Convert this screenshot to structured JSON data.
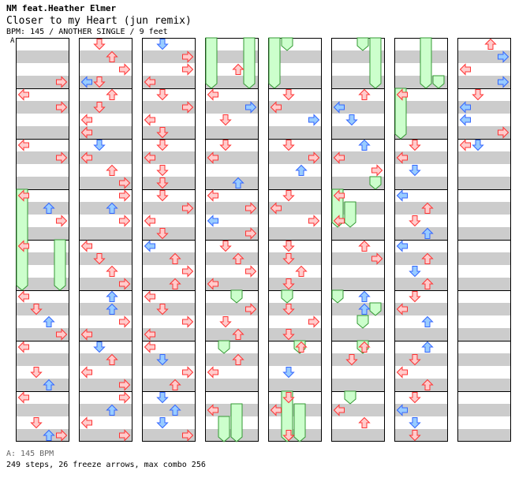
{
  "song": {
    "artist": "NM feat.Heather Elmer",
    "title": "Closer to my Heart (jun remix)",
    "info": "BPM: 145 / ANOTHER SINGLE / 9 feet"
  },
  "section_marker": "A",
  "bpm_legend": "A: 145 BPM",
  "stats": "249 steps, 26 freeze arrows, max combo 256",
  "colors": {
    "background": "#ffffff",
    "stripe": "#cccccc",
    "column_border": "#000000",
    "quarter_arrow_fill": "#ffcccc",
    "quarter_arrow_stroke": "#ff3333",
    "eighth_arrow_fill": "#99ccff",
    "eighth_arrow_stroke": "#3366ff",
    "freeze_fill": "#ccffcc",
    "freeze_stroke": "#339933"
  },
  "chart_data": {
    "type": "step-chart",
    "lanes": [
      "left",
      "down",
      "up",
      "right"
    ],
    "columns": 8,
    "measures_per_column": 8,
    "beats_per_measure": 4,
    "notes": [
      [
        [
          0,
          3,
          3,
          "q"
        ],
        [
          1,
          0,
          0,
          "q"
        ],
        [
          1,
          1,
          3,
          "q"
        ],
        [
          2,
          0,
          0,
          "q"
        ],
        [
          2,
          1,
          3,
          "q"
        ],
        [
          3,
          0,
          0,
          "q"
        ],
        [
          3,
          1,
          2,
          "e"
        ],
        [
          3,
          2,
          3,
          "q"
        ],
        [
          4,
          0,
          0,
          "q"
        ],
        [
          5,
          0,
          0,
          "q"
        ],
        [
          5,
          1,
          1,
          "q"
        ],
        [
          5,
          2,
          2,
          "e"
        ],
        [
          5,
          3,
          3,
          "q"
        ],
        [
          6,
          0,
          0,
          "q"
        ],
        [
          6,
          2,
          1,
          "q"
        ],
        [
          6,
          3,
          2,
          "e"
        ],
        [
          7,
          0,
          0,
          "q"
        ],
        [
          7,
          2,
          1,
          "q"
        ],
        [
          7,
          3,
          2,
          "e"
        ],
        [
          7,
          3,
          3,
          "q"
        ]
      ],
      [
        [
          0,
          0,
          1,
          "q"
        ],
        [
          0,
          1,
          2,
          "q"
        ],
        [
          0,
          2,
          3,
          "q"
        ],
        [
          0,
          3,
          1,
          "q"
        ],
        [
          0,
          3,
          0,
          "e"
        ],
        [
          1,
          0,
          2,
          "q"
        ],
        [
          1,
          1,
          1,
          "q"
        ],
        [
          1,
          2,
          0,
          "q"
        ],
        [
          1,
          3,
          0,
          "q"
        ],
        [
          2,
          0,
          1,
          "e"
        ],
        [
          2,
          1,
          0,
          "q"
        ],
        [
          2,
          2,
          2,
          "q"
        ],
        [
          2,
          3,
          3,
          "q"
        ],
        [
          3,
          0,
          3,
          "q"
        ],
        [
          3,
          1,
          2,
          "e"
        ],
        [
          3,
          2,
          3,
          "q"
        ],
        [
          4,
          0,
          0,
          "q"
        ],
        [
          4,
          1,
          1,
          "q"
        ],
        [
          4,
          2,
          2,
          "q"
        ],
        [
          4,
          3,
          3,
          "q"
        ],
        [
          5,
          0,
          2,
          "e"
        ],
        [
          5,
          1,
          2,
          "e"
        ],
        [
          5,
          2,
          3,
          "q"
        ],
        [
          5,
          3,
          0,
          "q"
        ],
        [
          6,
          0,
          1,
          "e"
        ],
        [
          6,
          1,
          2,
          "q"
        ],
        [
          6,
          2,
          0,
          "q"
        ],
        [
          6,
          3,
          3,
          "q"
        ],
        [
          7,
          0,
          3,
          "q"
        ],
        [
          7,
          1,
          2,
          "e"
        ],
        [
          7,
          2,
          0,
          "q"
        ],
        [
          7,
          3,
          3,
          "q"
        ]
      ],
      [
        [
          0,
          0,
          1,
          "e"
        ],
        [
          0,
          1,
          3,
          "q"
        ],
        [
          0,
          2,
          3,
          "q"
        ],
        [
          0,
          3,
          0,
          "q"
        ],
        [
          1,
          0,
          1,
          "q"
        ],
        [
          1,
          1,
          3,
          "q"
        ],
        [
          1,
          2,
          0,
          "q"
        ],
        [
          1,
          3,
          1,
          "q"
        ],
        [
          2,
          0,
          1,
          "q"
        ],
        [
          2,
          1,
          0,
          "q"
        ],
        [
          2,
          2,
          1,
          "q"
        ],
        [
          2,
          3,
          1,
          "q"
        ],
        [
          3,
          0,
          1,
          "q"
        ],
        [
          3,
          1,
          3,
          "q"
        ],
        [
          3,
          2,
          0,
          "q"
        ],
        [
          3,
          3,
          1,
          "q"
        ],
        [
          4,
          0,
          0,
          "e"
        ],
        [
          4,
          1,
          2,
          "q"
        ],
        [
          4,
          2,
          3,
          "q"
        ],
        [
          4,
          3,
          2,
          "q"
        ],
        [
          5,
          0,
          0,
          "q"
        ],
        [
          5,
          1,
          1,
          "q"
        ],
        [
          5,
          2,
          3,
          "q"
        ],
        [
          5,
          3,
          0,
          "q"
        ],
        [
          6,
          0,
          0,
          "q"
        ],
        [
          6,
          1,
          1,
          "e"
        ],
        [
          6,
          2,
          3,
          "q"
        ],
        [
          6,
          3,
          2,
          "q"
        ],
        [
          7,
          0,
          1,
          "e"
        ],
        [
          7,
          1,
          2,
          "e"
        ],
        [
          7,
          2,
          1,
          "e"
        ],
        [
          7,
          3,
          3,
          "q"
        ]
      ],
      [
        [
          0,
          2,
          2,
          "q"
        ],
        [
          1,
          0,
          0,
          "q"
        ],
        [
          1,
          1,
          3,
          "e"
        ],
        [
          1,
          2,
          1,
          "q"
        ],
        [
          2,
          0,
          1,
          "q"
        ],
        [
          2,
          1,
          0,
          "q"
        ],
        [
          2,
          3,
          2,
          "e"
        ],
        [
          3,
          0,
          0,
          "q"
        ],
        [
          3,
          1,
          3,
          "q"
        ],
        [
          3,
          2,
          0,
          "e"
        ],
        [
          3,
          3,
          3,
          "q"
        ],
        [
          4,
          0,
          1,
          "q"
        ],
        [
          4,
          1,
          2,
          "q"
        ],
        [
          4,
          2,
          3,
          "q"
        ],
        [
          4,
          3,
          0,
          "q"
        ],
        [
          5,
          1,
          3,
          "q"
        ],
        [
          5,
          2,
          1,
          "q"
        ],
        [
          5,
          3,
          2,
          "q"
        ],
        [
          6,
          1,
          2,
          "q"
        ],
        [
          6,
          2,
          0,
          "q"
        ],
        [
          7,
          1,
          0,
          "q"
        ]
      ],
      [
        [
          1,
          0,
          1,
          "q"
        ],
        [
          1,
          1,
          0,
          "q"
        ],
        [
          1,
          2,
          3,
          "e"
        ],
        [
          2,
          0,
          1,
          "q"
        ],
        [
          2,
          1,
          3,
          "q"
        ],
        [
          2,
          2,
          2,
          "e"
        ],
        [
          3,
          0,
          1,
          "q"
        ],
        [
          3,
          1,
          0,
          "q"
        ],
        [
          3,
          2,
          3,
          "q"
        ],
        [
          4,
          0,
          1,
          "q"
        ],
        [
          4,
          1,
          1,
          "q"
        ],
        [
          4,
          2,
          2,
          "q"
        ],
        [
          4,
          3,
          1,
          "q"
        ],
        [
          5,
          1,
          1,
          "q"
        ],
        [
          5,
          2,
          3,
          "q"
        ],
        [
          5,
          3,
          1,
          "q"
        ],
        [
          6,
          0,
          2,
          "q"
        ],
        [
          6,
          2,
          1,
          "e"
        ],
        [
          7,
          0,
          1,
          "q"
        ],
        [
          7,
          1,
          0,
          "q"
        ],
        [
          7,
          3,
          1,
          "q"
        ]
      ],
      [
        [
          1,
          0,
          2,
          "q"
        ],
        [
          1,
          1,
          0,
          "e"
        ],
        [
          1,
          2,
          1,
          "e"
        ],
        [
          2,
          0,
          2,
          "e"
        ],
        [
          2,
          1,
          0,
          "q"
        ],
        [
          2,
          2,
          3,
          "q"
        ],
        [
          3,
          0,
          0,
          "q"
        ],
        [
          3,
          2,
          0,
          "q"
        ],
        [
          4,
          0,
          2,
          "q"
        ],
        [
          4,
          1,
          3,
          "q"
        ],
        [
          5,
          0,
          2,
          "e"
        ],
        [
          5,
          1,
          2,
          "e"
        ],
        [
          6,
          0,
          2,
          "q"
        ],
        [
          6,
          1,
          1,
          "q"
        ],
        [
          7,
          1,
          0,
          "q"
        ],
        [
          7,
          2,
          2,
          "q"
        ]
      ],
      [
        [
          1,
          0,
          0,
          "q"
        ],
        [
          2,
          0,
          1,
          "q"
        ],
        [
          2,
          1,
          0,
          "q"
        ],
        [
          2,
          2,
          1,
          "e"
        ],
        [
          3,
          0,
          0,
          "e"
        ],
        [
          3,
          1,
          2,
          "q"
        ],
        [
          3,
          2,
          1,
          "q"
        ],
        [
          3,
          3,
          2,
          "e"
        ],
        [
          4,
          0,
          0,
          "e"
        ],
        [
          4,
          1,
          2,
          "q"
        ],
        [
          4,
          2,
          1,
          "e"
        ],
        [
          4,
          3,
          2,
          "q"
        ],
        [
          5,
          0,
          1,
          "q"
        ],
        [
          5,
          1,
          0,
          "q"
        ],
        [
          5,
          2,
          2,
          "e"
        ],
        [
          6,
          0,
          2,
          "e"
        ],
        [
          6,
          1,
          1,
          "q"
        ],
        [
          6,
          2,
          0,
          "q"
        ],
        [
          6,
          3,
          2,
          "q"
        ],
        [
          7,
          0,
          1,
          "q"
        ],
        [
          7,
          1,
          0,
          "e"
        ],
        [
          7,
          2,
          1,
          "e"
        ],
        [
          7,
          3,
          1,
          "q"
        ]
      ],
      [
        [
          0,
          0,
          2,
          "q"
        ],
        [
          0,
          1,
          3,
          "e"
        ],
        [
          0,
          2,
          0,
          "q"
        ],
        [
          0,
          3,
          3,
          "e"
        ],
        [
          1,
          0,
          1,
          "q"
        ],
        [
          1,
          1,
          0,
          "e"
        ],
        [
          1,
          2,
          0,
          "e"
        ],
        [
          1,
          3,
          3,
          "q"
        ],
        [
          2,
          0,
          0,
          "q"
        ],
        [
          2,
          0,
          1,
          "e"
        ]
      ]
    ],
    "freezes": [
      [
        [
          3,
          0,
          0,
          5,
          0
        ],
        [
          4,
          0,
          3,
          5,
          0
        ]
      ],
      [],
      [],
      [
        [
          0,
          0,
          0,
          1,
          0
        ],
        [
          0,
          0,
          3,
          1,
          0
        ],
        [
          5,
          0,
          2,
          5,
          1
        ],
        [
          6,
          0,
          1,
          6,
          1
        ],
        [
          7,
          1,
          2,
          8,
          0
        ],
        [
          7,
          2,
          1,
          8,
          0
        ]
      ],
      [
        [
          0,
          0,
          0,
          1,
          0
        ],
        [
          0,
          0,
          1,
          0,
          1
        ],
        [
          5,
          0,
          1,
          5,
          1
        ],
        [
          6,
          0,
          2,
          6,
          1
        ],
        [
          7,
          0,
          1,
          8,
          0
        ],
        [
          7,
          1,
          2,
          8,
          0
        ]
      ],
      [
        [
          0,
          0,
          2,
          0,
          1
        ],
        [
          0,
          0,
          3,
          1,
          0
        ],
        [
          3,
          0,
          0,
          3,
          3
        ],
        [
          3,
          1,
          1,
          3,
          3
        ],
        [
          2,
          3,
          3,
          2,
          4
        ],
        [
          5,
          0,
          0,
          5,
          1
        ],
        [
          5,
          1,
          3,
          5,
          2
        ],
        [
          5,
          2,
          2,
          5,
          3
        ],
        [
          6,
          0,
          2,
          6,
          1
        ],
        [
          7,
          0,
          1,
          7,
          1
        ]
      ],
      [
        [
          0,
          0,
          2,
          1,
          0
        ],
        [
          0,
          3,
          3,
          1,
          0
        ],
        [
          1,
          0,
          0,
          2,
          0
        ]
      ],
      []
    ]
  }
}
